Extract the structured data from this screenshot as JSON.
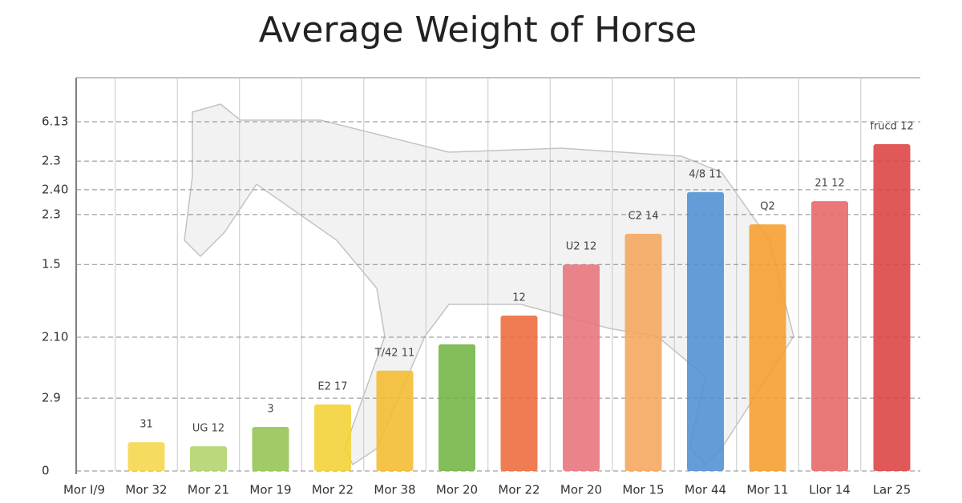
{
  "chart_data": {
    "type": "bar",
    "title": "Average Weight of Horse",
    "categories": [
      "Mor I/9",
      "Mor 32",
      "Mor 21",
      "Mor 19",
      "Mor 22",
      "Mor 38",
      "Mor 20",
      "Mor 22",
      "Mor 20",
      "Mor 15",
      "Mor 44",
      "Mor 11",
      "Llor 14",
      "Lar 25"
    ],
    "values": [
      null,
      7.3,
      6.3,
      11.2,
      16.9,
      25.5,
      32.2,
      39.5,
      52.5,
      60.3,
      70.9,
      62.7,
      68.6,
      83.1
    ],
    "colors": [
      null,
      "#f6d64a",
      "#b2d36a",
      "#93c452",
      "#f4d136",
      "#f5bb30",
      "#72b443",
      "#ee6a3c",
      "#e8737a",
      "#f5a55c",
      "#4f8fd2",
      "#f59d2c",
      "#e86565",
      "#dc4141"
    ],
    "annotations": [
      null,
      "31",
      "UG 12",
      "3",
      "E2 17",
      "T/42 11",
      null,
      "12",
      "U2 12",
      "C2 14",
      "4/8 11",
      "Q2",
      "21 12",
      "frucd 12"
    ],
    "ylim": [
      0,
      100
    ],
    "yticks": [
      0,
      {
        "value": 18.5,
        "label": "2.9"
      },
      {
        "value": 34.0,
        "label": "2.10"
      },
      {
        "value": 52.5,
        "label": "1.5"
      },
      {
        "value": 65.2,
        "label": "2.3"
      },
      {
        "value": 71.5,
        "label": "2.40"
      },
      {
        "value": 78.8,
        "label": "2.3"
      },
      {
        "value": 88.8,
        "label": "6.13"
      }
    ],
    "grid": true
  }
}
